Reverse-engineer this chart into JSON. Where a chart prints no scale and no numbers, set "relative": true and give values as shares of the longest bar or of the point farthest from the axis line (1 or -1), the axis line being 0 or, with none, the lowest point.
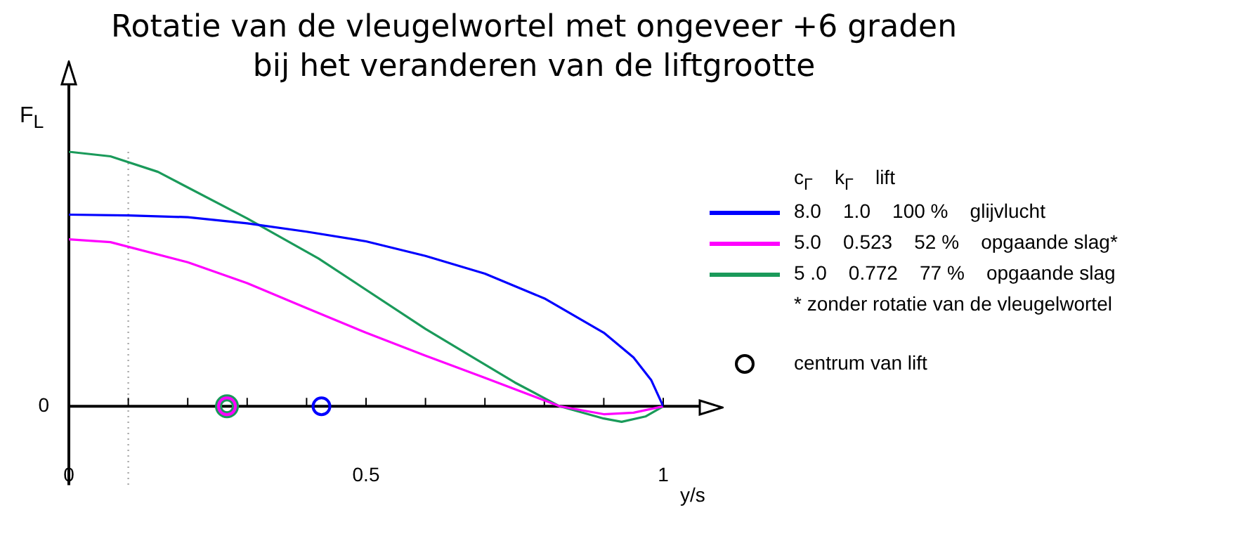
{
  "chart_data": {
    "type": "line",
    "title": "Rotatie van de vleugelwortel met ongeveer +6 graden",
    "subtitle": "bij het veranderen van de liftgrootte",
    "xlabel": "y/s",
    "ylabel": "F$_{L}$",
    "legend_title": "c$_{Γ}$  k$_{Γ}$  lift",
    "relative": true,
    "legend": "right",
    "grid": false,
    "xlim": [
      0,
      1
    ],
    "xticks": [
      0,
      {
        "value": 0.1,
        "label": null
      },
      {
        "value": 0.2,
        "label": null
      },
      {
        "value": 0.3,
        "label": null
      },
      {
        "value": 0.4,
        "label": null
      },
      0.5,
      {
        "value": 0.6,
        "label": null
      },
      {
        "value": 0.7,
        "label": null
      },
      {
        "value": 0.8,
        "label": null
      },
      {
        "value": 0.9,
        "label": null
      },
      1
    ],
    "series": [
      {
        "name": "8.0  1.0  100 %  glijvlucht",
        "color": "#0000ff",
        "x": [
          0,
          0.1,
          0.2,
          0.3,
          0.4,
          0.5,
          0.6,
          0.7,
          0.8,
          0.9,
          0.95,
          0.98,
          1
        ],
        "values": [
          0.753,
          0.75,
          0.743,
          0.719,
          0.686,
          0.648,
          0.591,
          0.521,
          0.424,
          0.289,
          0.192,
          0.102,
          0
        ]
      },
      {
        "name": "5.0  0.523  52 %  opgaande slag*",
        "color": "#ff00ff",
        "x": [
          0,
          0.07,
          0.2,
          0.3,
          0.4,
          0.5,
          0.6,
          0.7,
          0.826,
          0.9,
          0.95,
          1
        ],
        "values": [
          0.656,
          0.645,
          0.566,
          0.484,
          0.386,
          0.289,
          0.199,
          0.112,
          0,
          -0.031,
          -0.025,
          0
        ]
      },
      {
        "name": "5 .0  0.772  77 %  opgaande slag",
        "color": "#1a9a5a",
        "x": [
          0,
          0.07,
          0.15,
          0.3,
          0.42,
          0.6,
          0.75,
          0.826,
          0.9,
          0.93,
          0.97,
          1
        ],
        "values": [
          1,
          0.982,
          0.921,
          0.738,
          0.581,
          0.304,
          0.094,
          0,
          -0.048,
          -0.061,
          -0.04,
          0
        ]
      },
      {
        "type": "scatter",
        "marker": "circle",
        "color": "#000000",
        "x": [
          0.266,
          0.266,
          0.425
        ],
        "values": [
          0,
          0,
          0
        ],
        "colors": [
          "#1a9a5a",
          "#ff00ff",
          "#0000ff"
        ]
      }
    ],
    "ref_lines": [
      {
        "axis": "x",
        "value": 0.1,
        "color": "#aaaaaa",
        "line_style": "dotted"
      }
    ],
    "annotations": [
      "* zonder rotatie van de vleugelwortel",
      "0",
      "centrum van lift"
    ]
  }
}
